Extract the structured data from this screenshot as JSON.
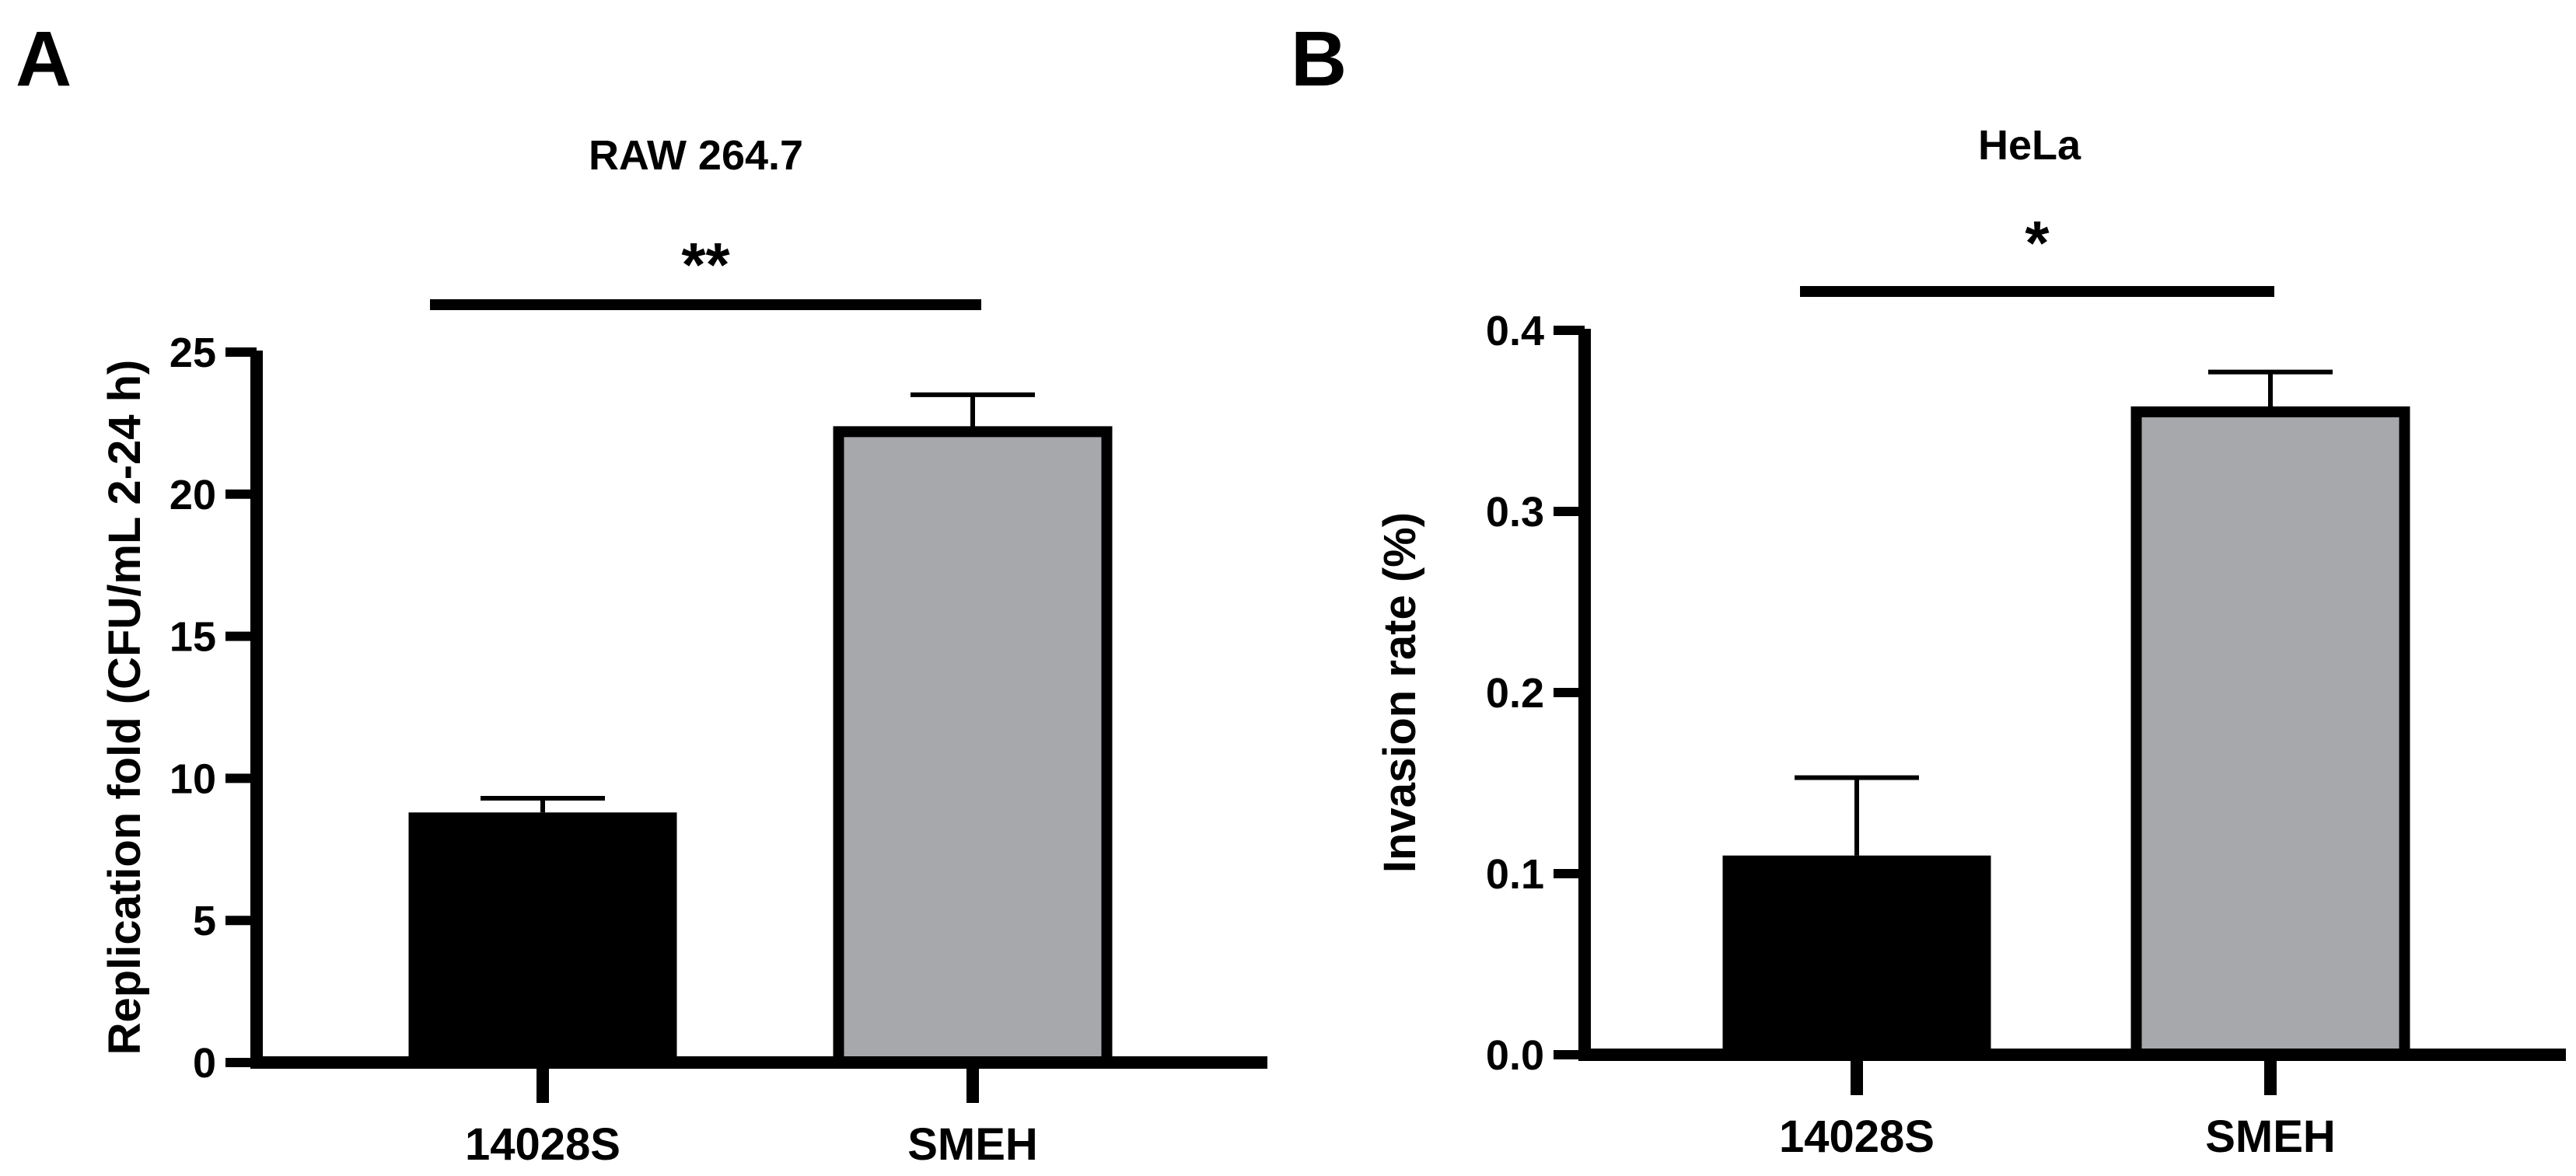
{
  "colors": {
    "axis": "#000000",
    "bar_14028S": "#000000",
    "bar_SMEH": "#a7a8ab",
    "outline": "#000000"
  },
  "panels": [
    {
      "letter": "A"
    },
    {
      "letter": "B"
    }
  ],
  "chart_data": [
    {
      "type": "bar",
      "title": "RAW 264.7",
      "xlabel": "",
      "ylabel": "Replication fold (CFU/mL 2-24 h)",
      "categories": [
        "14028S",
        "SMEH"
      ],
      "values": [
        8.8,
        22.2
      ],
      "errors": [
        0.5,
        1.3
      ],
      "ylim": [
        0,
        25
      ],
      "yticks": [
        0,
        5,
        10,
        15,
        20,
        25
      ],
      "tick_labels": [
        "0",
        "5",
        "10",
        "15",
        "20",
        "25"
      ],
      "significance": {
        "label": "**",
        "between": [
          "14028S",
          "SMEH"
        ]
      },
      "grid": false,
      "legend": "none"
    },
    {
      "type": "bar",
      "title": "HeLa",
      "xlabel": "",
      "ylabel": "Invasion rate (%)",
      "categories": [
        "14028S",
        "SMEH"
      ],
      "values": [
        0.11,
        0.355
      ],
      "errors": [
        0.043,
        0.022
      ],
      "ylim": [
        0,
        0.4
      ],
      "yticks": [
        0,
        0.1,
        0.2,
        0.3,
        0.4
      ],
      "tick_labels": [
        "0.0",
        "0.1",
        "0.2",
        "0.3",
        "0.4"
      ],
      "significance": {
        "label": "*",
        "between": [
          "14028S",
          "SMEH"
        ]
      },
      "grid": false,
      "legend": "none"
    }
  ]
}
